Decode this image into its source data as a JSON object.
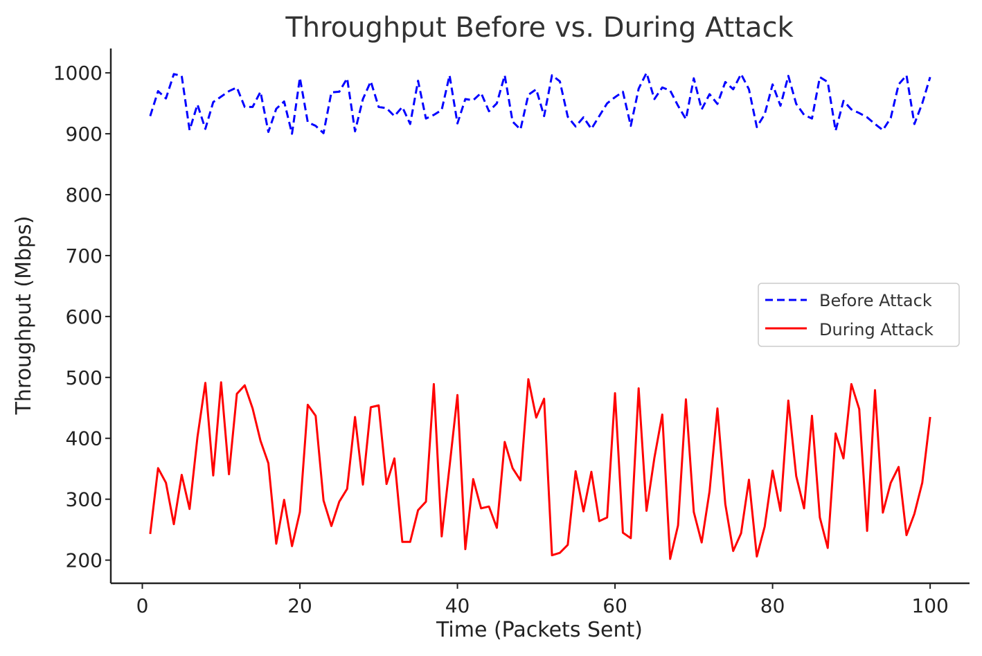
{
  "chart_data": {
    "type": "line",
    "title": "Throughput Before vs. During Attack",
    "xlabel": "Time (Packets Sent)",
    "ylabel": "Throughput (Mbps)",
    "xlim": [
      -4,
      105
    ],
    "ylim": [
      162,
      1040
    ],
    "xticks": [
      0,
      20,
      40,
      60,
      80,
      100
    ],
    "yticks": [
      200,
      300,
      400,
      500,
      600,
      700,
      800,
      900,
      1000
    ],
    "grid": false,
    "legend_position": "center-right",
    "x": [
      1,
      2,
      3,
      4,
      5,
      6,
      7,
      8,
      9,
      10,
      11,
      12,
      13,
      14,
      15,
      16,
      17,
      18,
      19,
      20,
      21,
      22,
      23,
      24,
      25,
      26,
      27,
      28,
      29,
      30,
      31,
      32,
      33,
      34,
      35,
      36,
      37,
      38,
      39,
      40,
      41,
      42,
      43,
      44,
      45,
      46,
      47,
      48,
      49,
      50,
      51,
      52,
      53,
      54,
      55,
      56,
      57,
      58,
      59,
      60,
      61,
      62,
      63,
      64,
      65,
      66,
      67,
      68,
      69,
      70,
      71,
      72,
      73,
      74,
      75,
      76,
      77,
      78,
      79,
      80,
      81,
      82,
      83,
      84,
      85,
      86,
      87,
      88,
      89,
      90,
      91,
      92,
      93,
      94,
      95,
      96,
      97,
      98,
      99,
      100
    ],
    "series": [
      {
        "name": "Before Attack",
        "color": "#0000ff",
        "style": "dashed",
        "values": [
          929,
          970,
          958,
          998,
          995,
          906,
          948,
          908,
          952,
          961,
          970,
          976,
          944,
          944,
          969,
          903,
          941,
          953,
          900,
          992,
          919,
          913,
          901,
          968,
          969,
          991,
          904,
          957,
          986,
          944,
          942,
          929,
          944,
          916,
          987,
          925,
          931,
          939,
          996,
          917,
          957,
          955,
          967,
          937,
          950,
          996,
          920,
          907,
          964,
          973,
          929,
          996,
          986,
          928,
          912,
          927,
          908,
          929,
          950,
          960,
          969,
          913,
          974,
          1000,
          957,
          976,
          971,
          946,
          924,
          991,
          940,
          965,
          949,
          985,
          973,
          998,
          973,
          911,
          932,
          981,
          946,
          995,
          949,
          931,
          925,
          993,
          985,
          905,
          954,
          940,
          934,
          927,
          916,
          906,
          926,
          981,
          996,
          916,
          950,
          993
        ]
      },
      {
        "name": "During Attack",
        "color": "#ff0000",
        "style": "solid",
        "values": [
          243,
          351,
          327,
          259,
          340,
          284,
          402,
          491,
          339,
          492,
          341,
          473,
          487,
          449,
          396,
          359,
          227,
          299,
          223,
          279,
          455,
          437,
          298,
          256,
          296,
          317,
          435,
          324,
          451,
          454,
          325,
          367,
          230,
          230,
          282,
          296,
          489,
          239,
          354,
          471,
          218,
          333,
          285,
          288,
          253,
          394,
          351,
          331,
          497,
          434,
          465,
          208,
          212,
          225,
          346,
          280,
          345,
          264,
          270,
          474,
          245,
          236,
          482,
          281,
          368,
          439,
          202,
          257,
          464,
          279,
          229,
          313,
          449,
          292,
          215,
          244,
          332,
          206,
          255,
          347,
          281,
          462,
          338,
          285,
          437,
          270,
          220,
          408,
          367,
          489,
          448,
          248,
          479,
          278,
          327,
          353,
          241,
          276,
          327,
          435
        ]
      }
    ]
  }
}
